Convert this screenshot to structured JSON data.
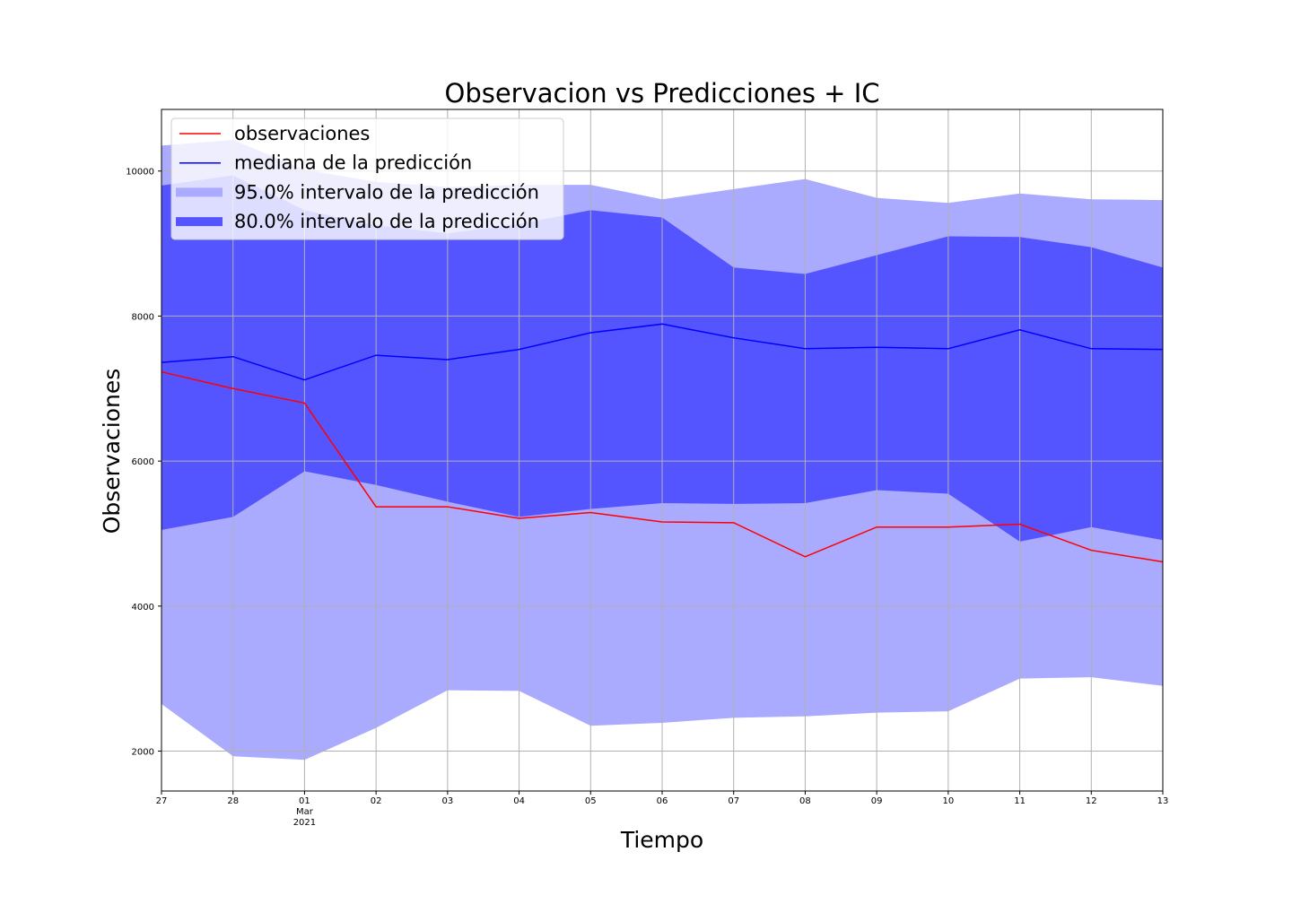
{
  "chart_data": {
    "type": "area",
    "title": "Observacion vs Predicciones + IC",
    "xlabel": "Tiempo",
    "ylabel": "Observaciones",
    "x_tick_labels": [
      "27",
      "28",
      "01",
      "02",
      "03",
      "04",
      "05",
      "06",
      "07",
      "08",
      "09",
      "10",
      "11",
      "12",
      "13"
    ],
    "x_secondary_label": {
      "index": 2,
      "lines": [
        "Mar",
        "2021"
      ]
    },
    "x_dates": [
      "2021-02-27",
      "2021-02-28",
      "2021-03-01",
      "2021-03-02",
      "2021-03-03",
      "2021-03-04",
      "2021-03-05",
      "2021-03-06",
      "2021-03-07",
      "2021-03-08",
      "2021-03-09",
      "2021-03-10",
      "2021-03-11",
      "2021-03-12",
      "2021-03-13"
    ],
    "ylim": [
      1450,
      10850
    ],
    "y_ticks": [
      "2000",
      "4000",
      "6000",
      "8000",
      "10000"
    ],
    "grid": true,
    "legend_position": "upper-left",
    "series": [
      {
        "name": "observaciones",
        "kind": "line",
        "color": "#ff0000",
        "values": [
          7230,
          7000,
          6800,
          5370,
          5370,
          5210,
          5290,
          5160,
          5150,
          4680,
          5090,
          5090,
          5130,
          4770,
          4610
        ]
      },
      {
        "name": "mediana de la predicción",
        "kind": "line",
        "color": "#0000ff",
        "values": [
          7360,
          7440,
          7120,
          7460,
          7400,
          7540,
          7770,
          7890,
          7700,
          7550,
          7570,
          7550,
          7810,
          7550,
          7540
        ]
      },
      {
        "name": "95.0% intervalo de la predicción",
        "kind": "band",
        "color": "#aaaaff",
        "lower": [
          2650,
          1930,
          1880,
          2320,
          2840,
          2830,
          2350,
          2390,
          2460,
          2480,
          2530,
          2550,
          3000,
          3020,
          2900
        ],
        "upper": [
          10350,
          10430,
          10020,
          9850,
          9780,
          9810,
          9810,
          9610,
          9750,
          9890,
          9630,
          9560,
          9690,
          9610,
          9600
        ]
      },
      {
        "name": "80.0% intervalo de la predicción",
        "kind": "band",
        "color": "#5555ff",
        "lower": [
          5050,
          5230,
          5860,
          5670,
          5440,
          5230,
          5340,
          5420,
          5410,
          5420,
          5600,
          5550,
          4890,
          5090,
          4910
        ],
        "upper": [
          9800,
          9940,
          9460,
          9250,
          9140,
          9270,
          9460,
          9360,
          8670,
          8580,
          8840,
          9100,
          9090,
          8950,
          8670
        ]
      }
    ]
  },
  "legend": [
    {
      "label": "observaciones",
      "kind": "line",
      "color": "#ff0000"
    },
    {
      "label": "mediana de la predicción",
      "kind": "line",
      "color": "#0000ff"
    },
    {
      "label": "95.0% intervalo de la predicción",
      "kind": "patch",
      "color": "#aaaaff"
    },
    {
      "label": "80.0% intervalo de la predicción",
      "kind": "patch",
      "color": "#5555ff"
    }
  ]
}
